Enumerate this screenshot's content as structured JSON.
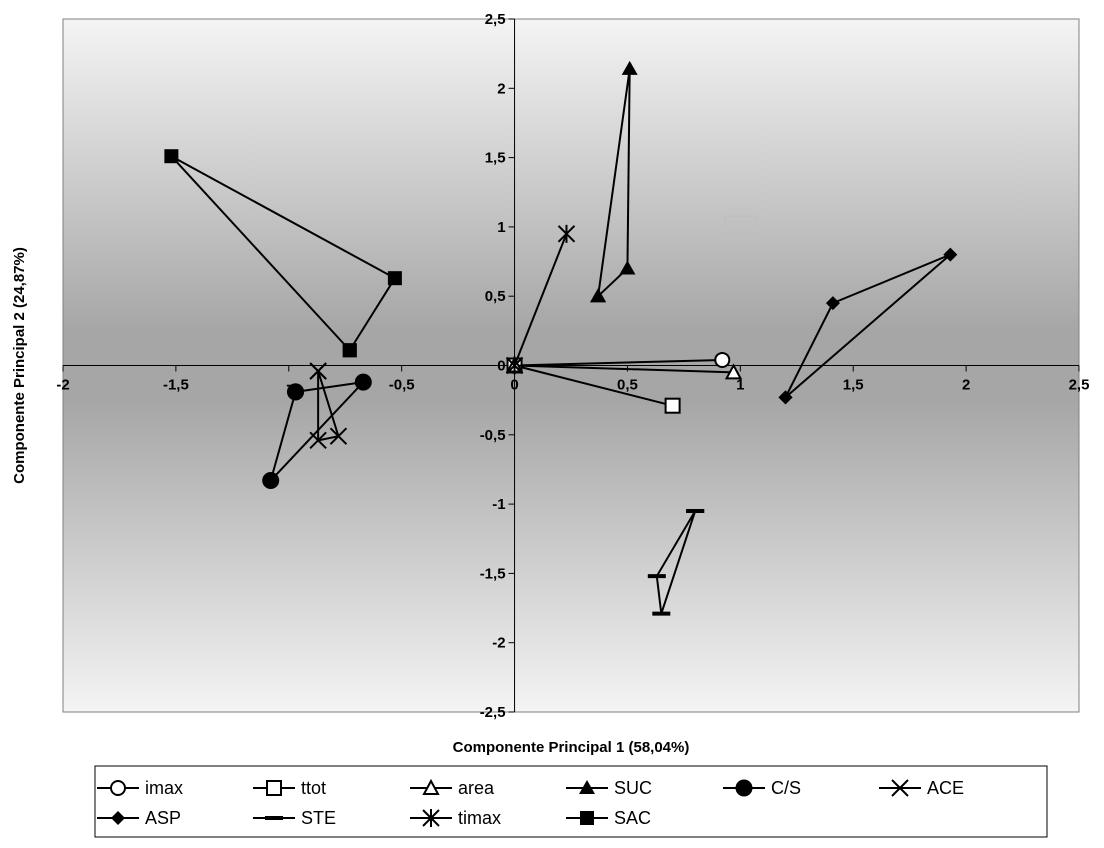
{
  "chart_data": {
    "type": "scatter",
    "title": "",
    "xlabel": "Componente Principal 1 (58,04%)",
    "ylabel": "Componente Principal 2 (24,87%)",
    "xlim": [
      -2,
      2.5
    ],
    "ylim": [
      -2.5,
      2.5
    ],
    "x_ticks": [
      -2,
      -1.5,
      -1,
      -0.5,
      0,
      0.5,
      1,
      1.5,
      2,
      2.5
    ],
    "x_tick_labels": [
      "-2",
      "-1,5",
      "-",
      "-0,5",
      "0",
      "0,5",
      "1",
      "1,5",
      "2",
      "2,5"
    ],
    "y_ticks": [
      2.5,
      2,
      1.5,
      1,
      0.5,
      0,
      -0.5,
      -1,
      -1.5,
      -2,
      -2.5
    ],
    "y_tick_labels": [
      "2,5",
      "2",
      "1,5",
      "1",
      "0,5",
      "0",
      "-0,5",
      "-1",
      "-1,5",
      "-2",
      "-2,5"
    ],
    "grid": false,
    "background": "vertical gray gradient (light at top and bottom, darker near the middle)",
    "legend_position": "bottom",
    "series": [
      {
        "name": "imax",
        "marker": "circle-open",
        "points": [
          [
            0,
            0
          ],
          [
            0.92,
            0.04
          ]
        ]
      },
      {
        "name": "ttot",
        "marker": "square-open",
        "points": [
          [
            0,
            0
          ],
          [
            0.7,
            -0.29
          ]
        ]
      },
      {
        "name": "area",
        "marker": "triangle-open",
        "points": [
          [
            0,
            0
          ],
          [
            0.97,
            -0.05
          ]
        ]
      },
      {
        "name": "SUC",
        "marker": "triangle-filled",
        "points": [
          [
            0.37,
            0.5
          ],
          [
            0.51,
            2.14
          ],
          [
            0.5,
            0.7
          ],
          [
            0.37,
            0.5
          ]
        ]
      },
      {
        "name": "C/S",
        "marker": "circle-filled",
        "points": [
          [
            -0.97,
            -0.19
          ],
          [
            -0.67,
            -0.12
          ],
          [
            -1.08,
            -0.83
          ],
          [
            -0.97,
            -0.19
          ]
        ]
      },
      {
        "name": "ACE",
        "marker": "x",
        "points": [
          [
            -0.87,
            -0.04
          ],
          [
            -0.78,
            -0.51
          ],
          [
            -0.87,
            -0.54
          ],
          [
            -0.87,
            -0.04
          ]
        ]
      },
      {
        "name": "ASP",
        "marker": "diamond-filled",
        "points": [
          [
            1.2,
            -0.23
          ],
          [
            1.41,
            0.45
          ],
          [
            1.93,
            0.8
          ],
          [
            1.2,
            -0.23
          ]
        ]
      },
      {
        "name": "STE",
        "marker": "dash",
        "points": [
          [
            0.8,
            -1.05
          ],
          [
            0.63,
            -1.52
          ],
          [
            0.65,
            -1.79
          ],
          [
            0.8,
            -1.05
          ]
        ]
      },
      {
        "name": "timax",
        "marker": "asterisk",
        "points": [
          [
            0,
            0
          ],
          [
            0.23,
            0.95
          ]
        ]
      },
      {
        "name": "SAC",
        "marker": "square-filled",
        "points": [
          [
            -0.73,
            0.11
          ],
          [
            -1.52,
            1.51
          ],
          [
            -0.53,
            0.63
          ],
          [
            -0.73,
            0.11
          ]
        ]
      }
    ],
    "annotations": [
      {
        "shape": "open-square",
        "x": 1.0,
        "y": 0.99,
        "color": "#bfbfbf"
      }
    ]
  }
}
